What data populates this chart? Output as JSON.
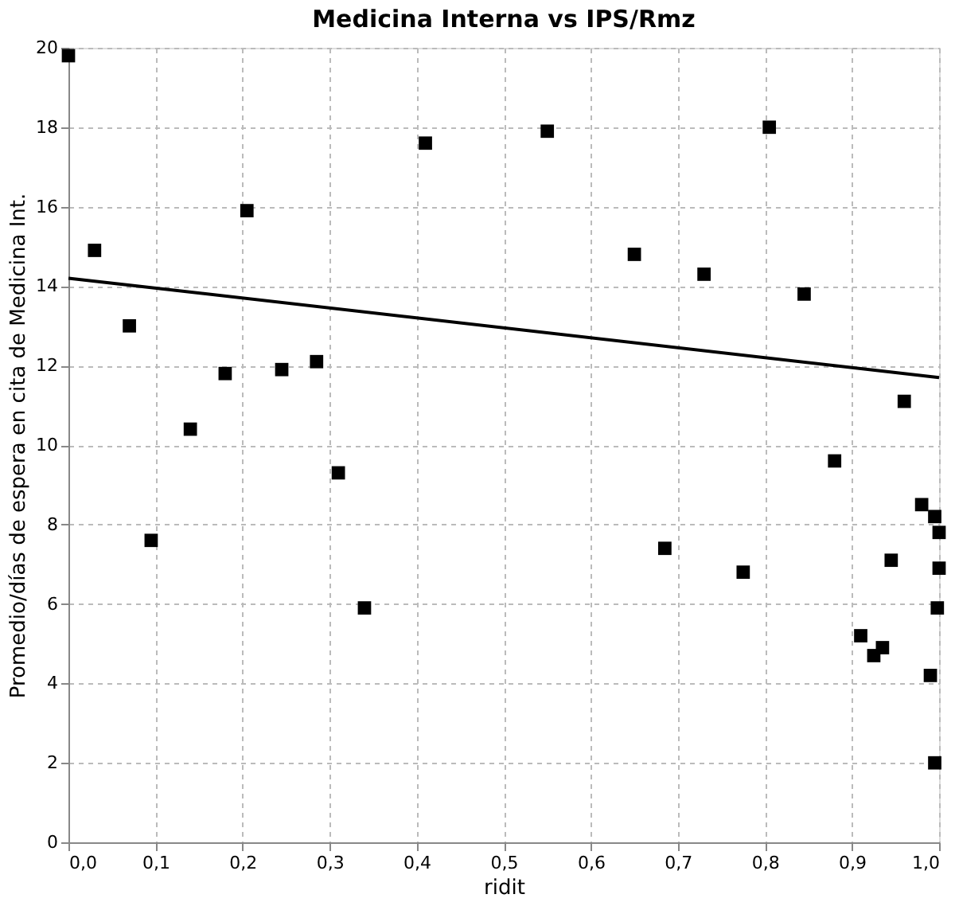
{
  "chart_data": {
    "type": "scatter",
    "title": "Medicina Interna vs IPS/Rmz",
    "xlabel": "ridit",
    "ylabel": "Promedio/días de espera en cita de Medicina Int.",
    "xlim": [
      0,
      1.0
    ],
    "xticks": [
      {
        "value": 0,
        "label": "0,0"
      },
      {
        "value": 0.1,
        "label": "0,1"
      },
      {
        "value": 0.2,
        "label": "0,2"
      },
      {
        "value": 0.3,
        "label": "0,3"
      },
      {
        "value": 0.4,
        "label": "0,4"
      },
      {
        "value": 0.5,
        "label": "0,5"
      },
      {
        "value": 0.6,
        "label": "0,6"
      },
      {
        "value": 0.7,
        "label": "0,7"
      },
      {
        "value": 0.8,
        "label": "0,8"
      },
      {
        "value": 0.9,
        "label": "0,9"
      },
      {
        "value": 1.0,
        "label": "1,0"
      }
    ],
    "ylim": [
      0,
      20
    ],
    "yticks": [
      0,
      2,
      4,
      6,
      8,
      10,
      12,
      14,
      16,
      18,
      20
    ],
    "grid": true,
    "series": [
      {
        "type": "scatter",
        "marker": "square",
        "color": "#000000",
        "x": [
          0.0,
          0.03,
          0.07,
          0.095,
          0.14,
          0.18,
          0.205,
          0.245,
          0.285,
          0.31,
          0.34,
          0.41,
          0.55,
          0.65,
          0.685,
          0.73,
          0.775,
          0.805,
          0.845,
          0.88,
          0.91,
          0.925,
          0.935,
          0.945,
          0.96,
          0.98,
          0.99,
          0.995,
          0.995,
          0.998,
          1.0,
          1.0
        ],
        "values": [
          19.8,
          14.9,
          13.0,
          7.6,
          10.4,
          11.8,
          15.9,
          11.9,
          12.1,
          9.3,
          5.9,
          17.6,
          17.9,
          14.8,
          7.4,
          14.3,
          6.8,
          18.0,
          13.8,
          9.6,
          5.2,
          4.7,
          4.9,
          7.1,
          11.1,
          8.5,
          4.2,
          8.2,
          2.0,
          5.9,
          7.8,
          6.9
        ]
      },
      {
        "type": "line",
        "marker": "none",
        "color": "#000000",
        "x": [
          0.0,
          1.0
        ],
        "values": [
          14.2,
          11.7
        ]
      }
    ]
  }
}
